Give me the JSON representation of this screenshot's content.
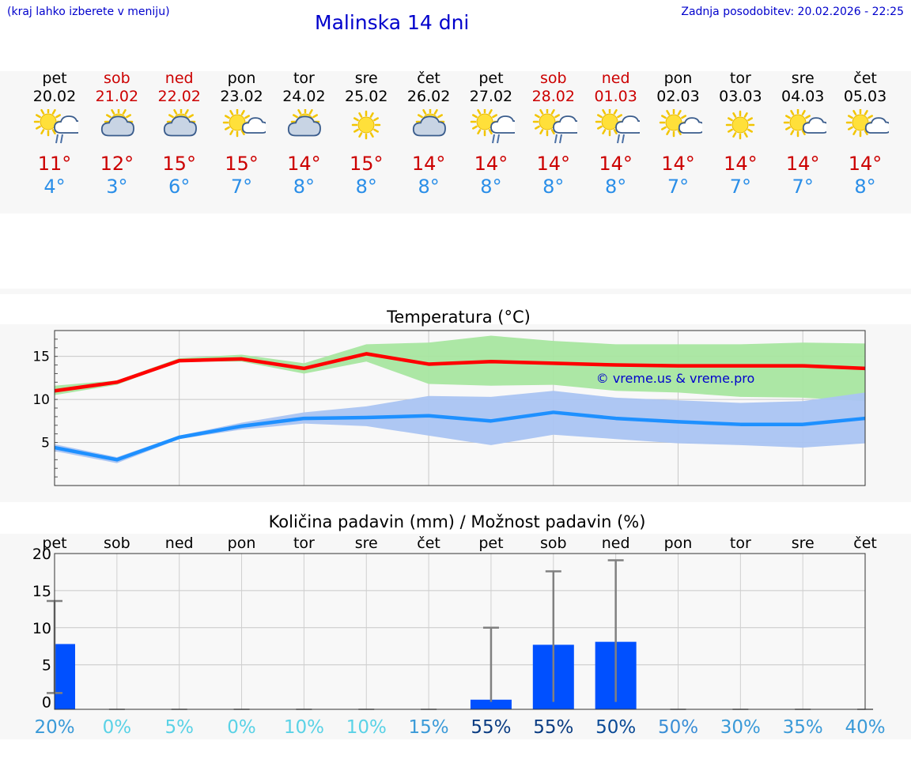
{
  "header": {
    "hint": "(kraj lahko izberete v meniju)",
    "title": "Malinska 14 dni",
    "updated": "Zadnja posodobitev: 20.02.2026 - 22:25"
  },
  "days": [
    {
      "name": "pet",
      "date": "20.02",
      "weekend": false,
      "icon": "sun-cloud-rain-icon",
      "tmax": "11°",
      "tmin": "4°"
    },
    {
      "name": "sob",
      "date": "21.02",
      "weekend": true,
      "icon": "sun-behind-cloud-icon",
      "tmax": "12°",
      "tmin": "3°"
    },
    {
      "name": "ned",
      "date": "22.02",
      "weekend": true,
      "icon": "sun-behind-cloud-icon",
      "tmax": "15°",
      "tmin": "6°"
    },
    {
      "name": "pon",
      "date": "23.02",
      "weekend": false,
      "icon": "sun-small-cloud-icon",
      "tmax": "15°",
      "tmin": "7°"
    },
    {
      "name": "tor",
      "date": "24.02",
      "weekend": false,
      "icon": "sun-behind-cloud-icon",
      "tmax": "14°",
      "tmin": "8°"
    },
    {
      "name": "sre",
      "date": "25.02",
      "weekend": false,
      "icon": "sun-icon",
      "tmax": "15°",
      "tmin": "8°"
    },
    {
      "name": "čet",
      "date": "26.02",
      "weekend": false,
      "icon": "sun-behind-cloud-icon",
      "tmax": "14°",
      "tmin": "8°"
    },
    {
      "name": "pet",
      "date": "27.02",
      "weekend": false,
      "icon": "sun-cloud-rain-icon",
      "tmax": "14°",
      "tmin": "8°"
    },
    {
      "name": "sob",
      "date": "28.02",
      "weekend": true,
      "icon": "sun-cloud-rain-icon",
      "tmax": "14°",
      "tmin": "8°"
    },
    {
      "name": "ned",
      "date": "01.03",
      "weekend": true,
      "icon": "sun-cloud-rain-icon",
      "tmax": "14°",
      "tmin": "8°"
    },
    {
      "name": "pon",
      "date": "02.03",
      "weekend": false,
      "icon": "sun-small-cloud-icon",
      "tmax": "14°",
      "tmin": "7°"
    },
    {
      "name": "tor",
      "date": "03.03",
      "weekend": false,
      "icon": "sun-icon",
      "tmax": "14°",
      "tmin": "7°"
    },
    {
      "name": "sre",
      "date": "04.03",
      "weekend": false,
      "icon": "sun-small-cloud-icon",
      "tmax": "14°",
      "tmin": "7°"
    },
    {
      "name": "čet",
      "date": "05.03",
      "weekend": false,
      "icon": "sun-small-cloud-icon",
      "tmax": "14°",
      "tmin": "8°"
    }
  ],
  "colors": {
    "max_line": "#ff0000",
    "max_band": "#a8e6a0",
    "min_line": "#1e90ff",
    "min_band": "#aac4f2",
    "precip_bar": "#0050ff",
    "whisker": "#808080",
    "weekend": "#cc0000"
  },
  "chart_data": [
    {
      "type": "line",
      "title": "Temperatura (°C)",
      "watermark": "© vreme.us & vreme.pro",
      "x": [
        "20.02",
        "21.02",
        "22.02",
        "23.02",
        "24.02",
        "25.02",
        "26.02",
        "27.02",
        "28.02",
        "01.03",
        "02.03",
        "03.03",
        "04.03",
        "05.03"
      ],
      "ylim": [
        0,
        18
      ],
      "yticks": [
        5,
        10,
        15
      ],
      "series": [
        {
          "name": "max",
          "values": [
            11,
            12,
            14.5,
            14.7,
            13.6,
            15.3,
            14.1,
            14.4,
            14.2,
            14.0,
            13.9,
            13.9,
            13.9,
            13.6
          ],
          "band_low": [
            10.5,
            11.7,
            14.4,
            14.4,
            13.0,
            14.4,
            11.8,
            11.6,
            11.7,
            11.0,
            10.8,
            10.3,
            10.2,
            9.8
          ],
          "band_high": [
            11.6,
            12.2,
            14.8,
            15.2,
            14.2,
            16.4,
            16.6,
            17.4,
            16.8,
            16.4,
            16.4,
            16.4,
            16.6,
            16.5
          ]
        },
        {
          "name": "min",
          "values": [
            4.4,
            3.0,
            5.6,
            6.9,
            7.8,
            7.9,
            8.1,
            7.5,
            8.5,
            7.8,
            7.4,
            7.1,
            7.1,
            7.8
          ],
          "band_low": [
            4.0,
            2.6,
            5.4,
            6.5,
            7.2,
            6.9,
            5.8,
            4.7,
            5.9,
            5.4,
            4.9,
            4.7,
            4.4,
            4.9
          ],
          "band_high": [
            4.8,
            3.3,
            5.8,
            7.3,
            8.5,
            9.2,
            10.4,
            10.3,
            11.0,
            10.2,
            9.9,
            9.6,
            9.8,
            10.8
          ]
        }
      ]
    },
    {
      "type": "bar",
      "title": "Količina padavin (mm) / Možnost padavin (%)",
      "categories": [
        "pet",
        "sob",
        "ned",
        "pon",
        "tor",
        "sre",
        "čet",
        "pet",
        "sob",
        "ned",
        "pon",
        "tor",
        "sre",
        "čet"
      ],
      "ylim": [
        -1,
        20
      ],
      "yticks": [
        0,
        5,
        10,
        15,
        20
      ],
      "values": [
        7.8,
        0,
        0,
        0,
        0,
        0,
        0,
        0.3,
        7.7,
        8.1,
        0,
        0,
        0,
        0
      ],
      "whisker_low": [
        1.2,
        0,
        0,
        0,
        0,
        0,
        0,
        0,
        0,
        0,
        0,
        0,
        0,
        0
      ],
      "whisker_high": [
        13.6,
        0,
        0,
        0,
        0,
        0,
        0,
        10.0,
        17.6,
        19.1,
        0,
        0,
        0,
        0
      ],
      "probabilities": [
        "20%",
        "0%",
        "5%",
        "0%",
        "10%",
        "10%",
        "15%",
        "55%",
        "55%",
        "50%",
        "50%",
        "30%",
        "35%",
        "40%"
      ],
      "probability_values": [
        20,
        0,
        5,
        0,
        10,
        10,
        15,
        55,
        55,
        50,
        50,
        30,
        35,
        40
      ]
    }
  ]
}
